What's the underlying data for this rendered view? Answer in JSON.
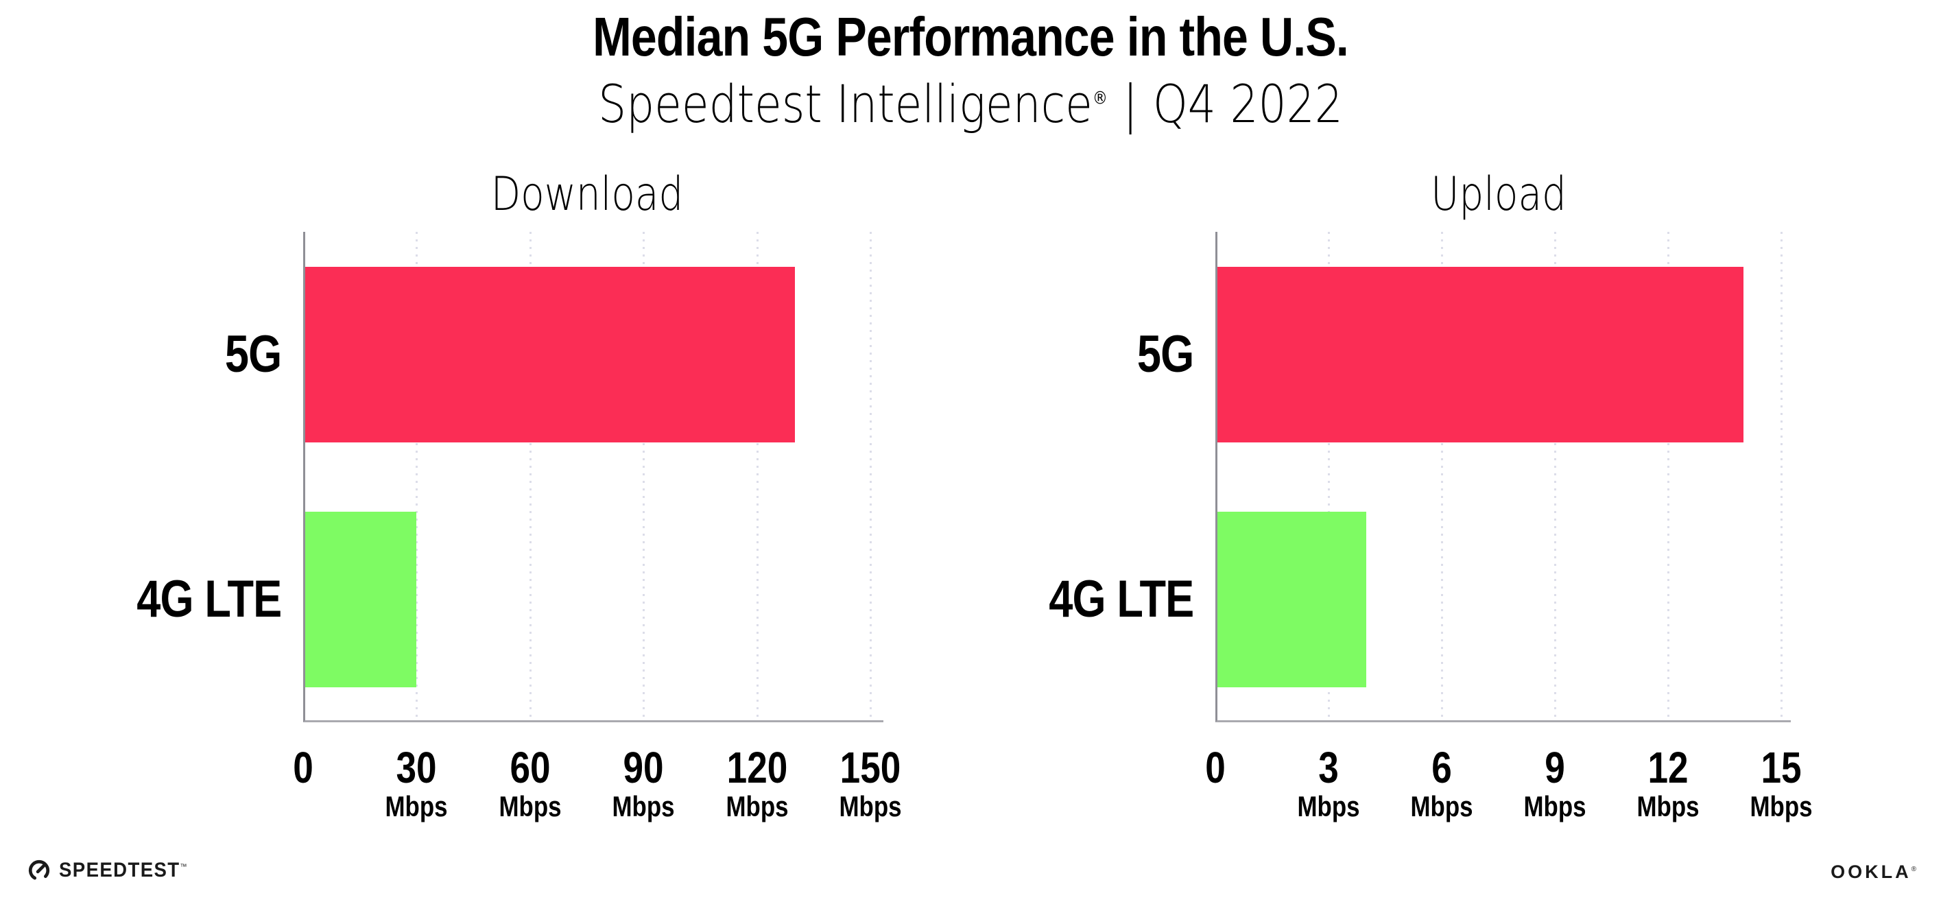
{
  "header": {
    "title": "Median 5G Performance in the U.S.",
    "subtitle_brand": "Speedtest Intelligence",
    "subtitle_reg": "®",
    "subtitle_separator": "|",
    "subtitle_period": "Q4 2022"
  },
  "footer": {
    "speedtest_label": "SPEEDTEST",
    "speedtest_tm": "™",
    "ookla_label": "OOKLA",
    "ookla_reg": "®"
  },
  "colors": {
    "bar_5g": "#fb2d55",
    "bar_4g_lte": "#7efb63",
    "gridline": "#dcdde9",
    "axis": "#9b9b9b",
    "text": "#000000"
  },
  "chart_data": [
    {
      "type": "bar",
      "orientation": "horizontal",
      "title": "Download",
      "categories": [
        "5G",
        "4G LTE"
      ],
      "values": [
        130,
        30
      ],
      "unit": "Mbps",
      "xlim": [
        0,
        150
      ],
      "xticks": [
        0,
        30,
        60,
        90,
        120,
        150
      ],
      "tick_unit_label": "Mbps",
      "grid": "dotted-vertical",
      "legend": "none",
      "bar_colors": [
        "#fb2d55",
        "#7efb63"
      ]
    },
    {
      "type": "bar",
      "orientation": "horizontal",
      "title": "Upload",
      "categories": [
        "5G",
        "4G LTE"
      ],
      "values": [
        14,
        4
      ],
      "unit": "Mbps",
      "xlim": [
        0,
        15
      ],
      "xticks": [
        0,
        3,
        6,
        9,
        12,
        15
      ],
      "tick_unit_label": "Mbps",
      "grid": "dotted-vertical",
      "legend": "none",
      "bar_colors": [
        "#fb2d55",
        "#7efb63"
      ]
    }
  ]
}
